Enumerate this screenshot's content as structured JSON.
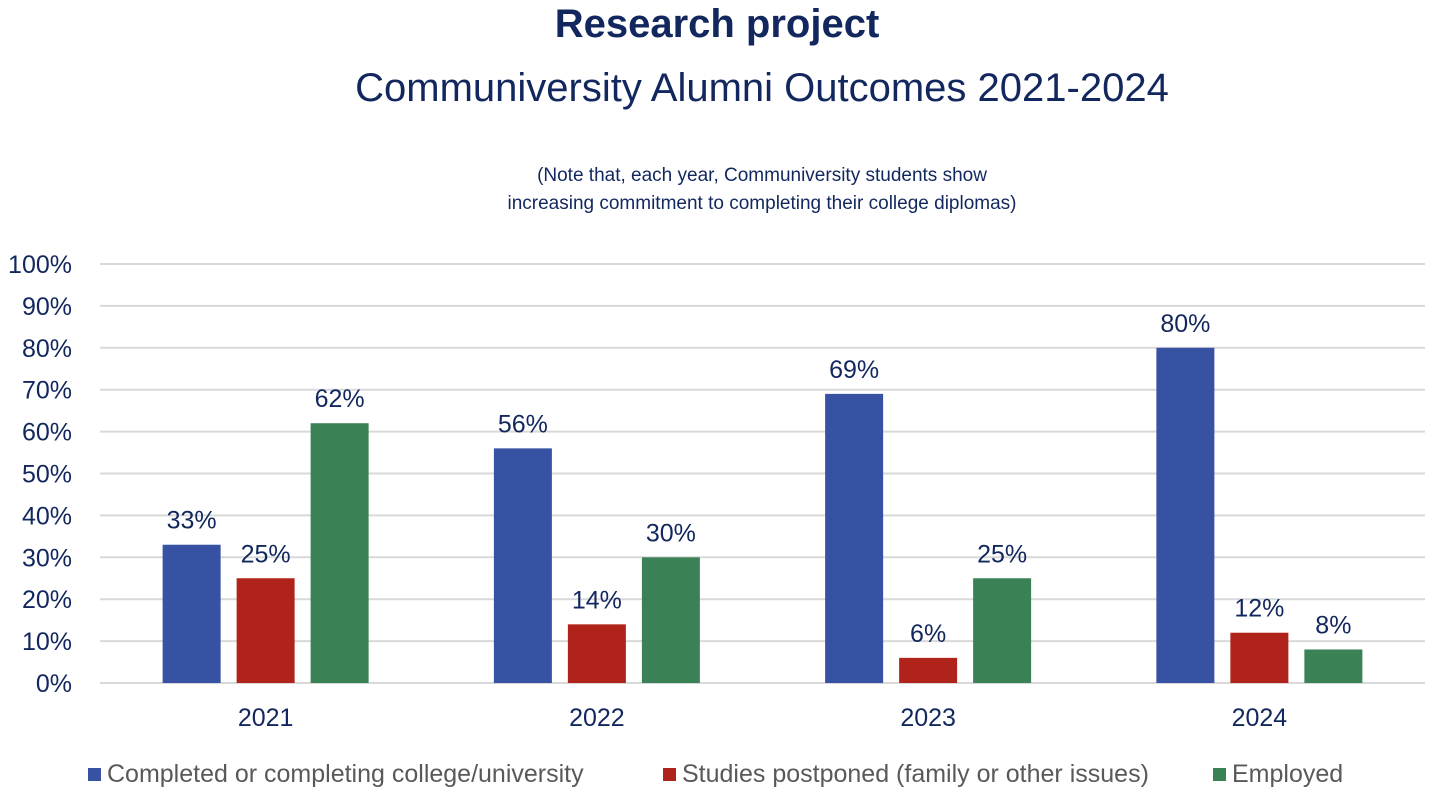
{
  "chart_data": {
    "type": "bar",
    "title": "Research project",
    "subtitle": "Communiversity Alumni Outcomes 2021-2024",
    "note": [
      "(Note that, each year, Communiversity students show",
      "increasing commitment to completing their college diplomas)"
    ],
    "xlabel": "",
    "ylabel": "",
    "ylim": [
      0,
      100
    ],
    "yticks": [
      "0%",
      "10%",
      "20%",
      "30%",
      "40%",
      "50%",
      "60%",
      "70%",
      "80%",
      "90%",
      "100%"
    ],
    "grid": true,
    "legend_position": "bottom",
    "categories": [
      "2021",
      "2022",
      "2023",
      "2024"
    ],
    "series": [
      {
        "name": "Completed or completing college/university",
        "color": "#3752a3",
        "values": [
          33,
          56,
          69,
          80
        ],
        "labels": [
          "33%",
          "56%",
          "69%",
          "80%"
        ]
      },
      {
        "name": "Studies postponed (family or other issues)",
        "color": "#b0231a",
        "values": [
          25,
          14,
          6,
          12
        ],
        "labels": [
          "25%",
          "14%",
          "6%",
          "12%"
        ]
      },
      {
        "name": "Employed",
        "color": "#3b8156",
        "values": [
          62,
          30,
          25,
          8
        ],
        "labels": [
          "62%",
          "30%",
          "25%",
          "8%"
        ]
      }
    ]
  }
}
